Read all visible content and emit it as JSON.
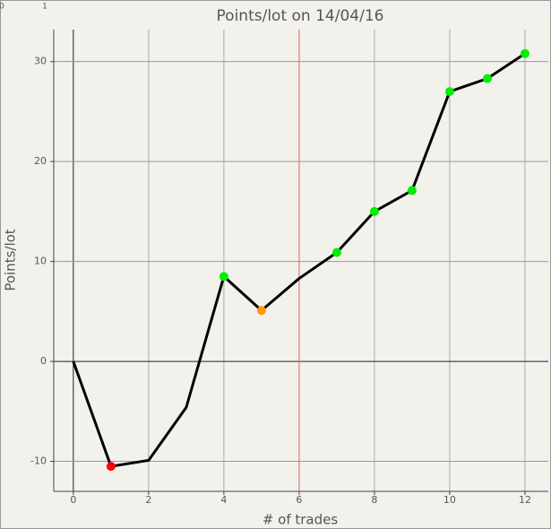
{
  "ruler": [
    "0",
    "1"
  ],
  "chart_data": {
    "type": "line",
    "title": "Points/lot on 14/04/16",
    "x_label": "# of trades",
    "y_label": "Points/lot",
    "x": [
      0,
      1,
      2,
      3,
      4,
      5,
      6,
      7,
      8,
      9,
      10,
      11,
      12
    ],
    "series": [
      {
        "color": "#000000",
        "values": [
          0,
          -10.5,
          -9.9,
          -4.6,
          8.5,
          5.1,
          8.3,
          10.9,
          15,
          17.1,
          27,
          28.3,
          30.8
        ],
        "marker_colors": [
          null,
          "#ff0000",
          null,
          null,
          "#00ee00",
          "#ff9900",
          null,
          "#00ee00",
          "#00ee00",
          "#00ee00",
          "#00ee00",
          "#00ee00",
          "#00ee00"
        ]
      }
    ],
    "xlim": [
      -0.52,
      12.62
    ],
    "ylim": [
      -13,
      33.2
    ],
    "xticks": [
      0,
      2,
      4,
      6,
      8,
      10,
      12
    ],
    "yticks": [
      -10,
      0,
      10,
      20,
      30
    ],
    "grid": true,
    "vline": {
      "x": 6,
      "color": "#e07070"
    }
  }
}
